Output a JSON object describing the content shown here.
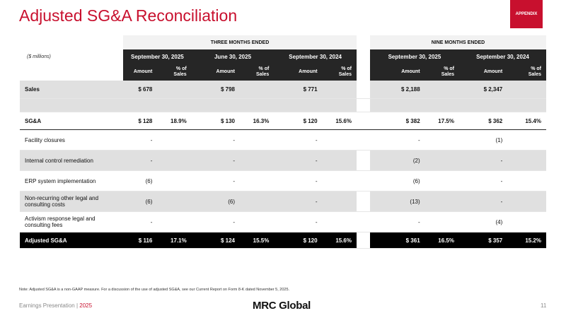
{
  "title": "Adjusted SG&A Reconciliation",
  "badge": "APPENDIX",
  "table": {
    "units": "($ millions)",
    "period_groups": [
      "THREE MONTHS ENDED",
      "NINE MONTHS ENDED"
    ],
    "dates": [
      "September 30, 2025",
      "June 30, 2025",
      "September 30, 2024",
      "September 30, 2025",
      "September 30, 2024"
    ],
    "amount_label": "Amount",
    "pct_label_line1": "% of",
    "pct_label_line2": "Sales",
    "rows": [
      {
        "label": "Sales",
        "cells": [
          [
            "$ 678",
            ""
          ],
          [
            "$ 798",
            ""
          ],
          [
            "$ 771",
            ""
          ],
          [
            "$ 2,188",
            ""
          ],
          [
            "$ 2,347",
            ""
          ]
        ]
      },
      {
        "label": "",
        "cells": [
          [
            "",
            ""
          ],
          [
            "",
            ""
          ],
          [
            "",
            ""
          ],
          [
            "",
            ""
          ],
          [
            "",
            ""
          ]
        ]
      },
      {
        "label": "SG&A",
        "cells": [
          [
            "$ 128",
            "18.9%"
          ],
          [
            "$ 130",
            "16.3%"
          ],
          [
            "$ 120",
            "15.6%"
          ],
          [
            "$ 382",
            "17.5%"
          ],
          [
            "$ 362",
            "15.4%"
          ]
        ]
      },
      {
        "label": "Facility closures",
        "cells": [
          [
            "-",
            ""
          ],
          [
            "-",
            ""
          ],
          [
            "-",
            ""
          ],
          [
            "-",
            ""
          ],
          [
            "(1)",
            ""
          ]
        ]
      },
      {
        "label": "Internal control remediation",
        "cells": [
          [
            "-",
            ""
          ],
          [
            "-",
            ""
          ],
          [
            "-",
            ""
          ],
          [
            "(2)",
            ""
          ],
          [
            "-",
            ""
          ]
        ]
      },
      {
        "label": "ERP system implementation",
        "cells": [
          [
            "(6)",
            ""
          ],
          [
            "-",
            ""
          ],
          [
            "-",
            ""
          ],
          [
            "(6)",
            ""
          ],
          [
            "-",
            ""
          ]
        ]
      },
      {
        "label": "Non-recurring other legal and consulting costs",
        "cells": [
          [
            "(6)",
            ""
          ],
          [
            "(6)",
            ""
          ],
          [
            "-",
            ""
          ],
          [
            "(13)",
            ""
          ],
          [
            "-",
            ""
          ]
        ]
      },
      {
        "label": "Activism response legal and consulting fees",
        "cells": [
          [
            "-",
            ""
          ],
          [
            "-",
            ""
          ],
          [
            "-",
            ""
          ],
          [
            "-",
            ""
          ],
          [
            "(4)",
            ""
          ]
        ]
      },
      {
        "label": "Adjusted SG&A",
        "cells": [
          [
            "$ 116",
            "17.1%"
          ],
          [
            "$ 124",
            "15.5%"
          ],
          [
            "$ 120",
            "15.6%"
          ],
          [
            "$ 361",
            "16.5%"
          ],
          [
            "$ 357",
            "15.2%"
          ]
        ]
      }
    ]
  },
  "note": "Note: Adjusted SG&A is a non-GAAP measure. For a discussion of the use of adjusted SG&A, see our Current Report on Form 8-K dated November 5, 2025.",
  "footer": {
    "label": "Earnings Presentation | ",
    "year": "2025",
    "logo": "MRC Global",
    "page": "11"
  },
  "colors": {
    "accent": "#c8102e",
    "header_dark": "#262626",
    "row_shade": "#e0e0e0"
  }
}
